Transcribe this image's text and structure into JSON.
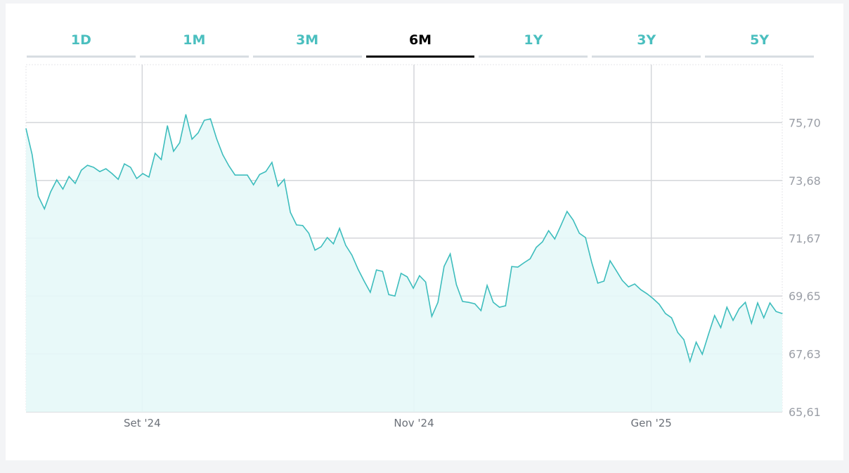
{
  "tabs": [
    {
      "label": "1D"
    },
    {
      "label": "1M"
    },
    {
      "label": "3M"
    },
    {
      "label": "6M",
      "active": true
    },
    {
      "label": "1Y"
    },
    {
      "label": "3Y"
    },
    {
      "label": "5Y"
    }
  ],
  "colors": {
    "line": "#3dbdbd",
    "fill": "#e6f8f8",
    "tab_text": "#4bbfbf",
    "active_tab": "#000000",
    "grid": "#d4d6da"
  },
  "chart_data": {
    "type": "area",
    "title": "",
    "xlabel": "",
    "ylabel": "",
    "ylim": [
      65.61,
      77.72
    ],
    "grid": true,
    "y_ticks": [
      {
        "value": 75.7,
        "label": "75,70"
      },
      {
        "value": 73.68,
        "label": "73,68"
      },
      {
        "value": 71.67,
        "label": "71,67"
      },
      {
        "value": 69.65,
        "label": "69,65"
      },
      {
        "value": 67.63,
        "label": "67,63"
      },
      {
        "value": 65.61,
        "label": "65,61"
      }
    ],
    "x_ticks": [
      {
        "index": 18.9,
        "label": "Set '24"
      },
      {
        "index": 63.1,
        "label": "Nov '24"
      },
      {
        "index": 101.7,
        "label": "Gen '25"
      }
    ],
    "values": [
      75.49,
      74.58,
      73.13,
      72.69,
      73.28,
      73.7,
      73.38,
      73.82,
      73.58,
      74.04,
      74.21,
      74.14,
      73.99,
      74.09,
      73.92,
      73.72,
      74.26,
      74.14,
      73.75,
      73.92,
      73.8,
      74.63,
      74.41,
      75.59,
      74.7,
      75.0,
      75.98,
      75.12,
      75.34,
      75.78,
      75.83,
      75.14,
      74.58,
      74.19,
      73.87,
      73.87,
      73.87,
      73.53,
      73.89,
      73.99,
      74.31,
      73.48,
      73.72,
      72.57,
      72.13,
      72.11,
      71.84,
      71.25,
      71.37,
      71.69,
      71.47,
      72.01,
      71.42,
      71.08,
      70.59,
      70.17,
      69.78,
      70.56,
      70.51,
      69.7,
      69.65,
      70.44,
      70.32,
      69.92,
      70.36,
      70.14,
      68.94,
      69.43,
      70.68,
      71.12,
      70.05,
      69.46,
      69.43,
      69.38,
      69.14,
      70.02,
      69.43,
      69.26,
      69.31,
      70.68,
      70.66,
      70.81,
      70.95,
      71.35,
      71.54,
      71.93,
      71.64,
      72.11,
      72.6,
      72.3,
      71.84,
      71.69,
      70.83,
      70.1,
      70.17,
      70.88,
      70.54,
      70.19,
      69.97,
      70.07,
      69.87,
      69.73,
      69.56,
      69.36,
      69.04,
      68.89,
      68.38,
      68.13,
      67.37,
      68.04,
      67.62,
      68.31,
      68.97,
      68.55,
      69.26,
      68.8,
      69.21,
      69.43,
      68.7,
      69.41,
      68.89,
      69.41,
      69.11,
      69.04
    ]
  }
}
